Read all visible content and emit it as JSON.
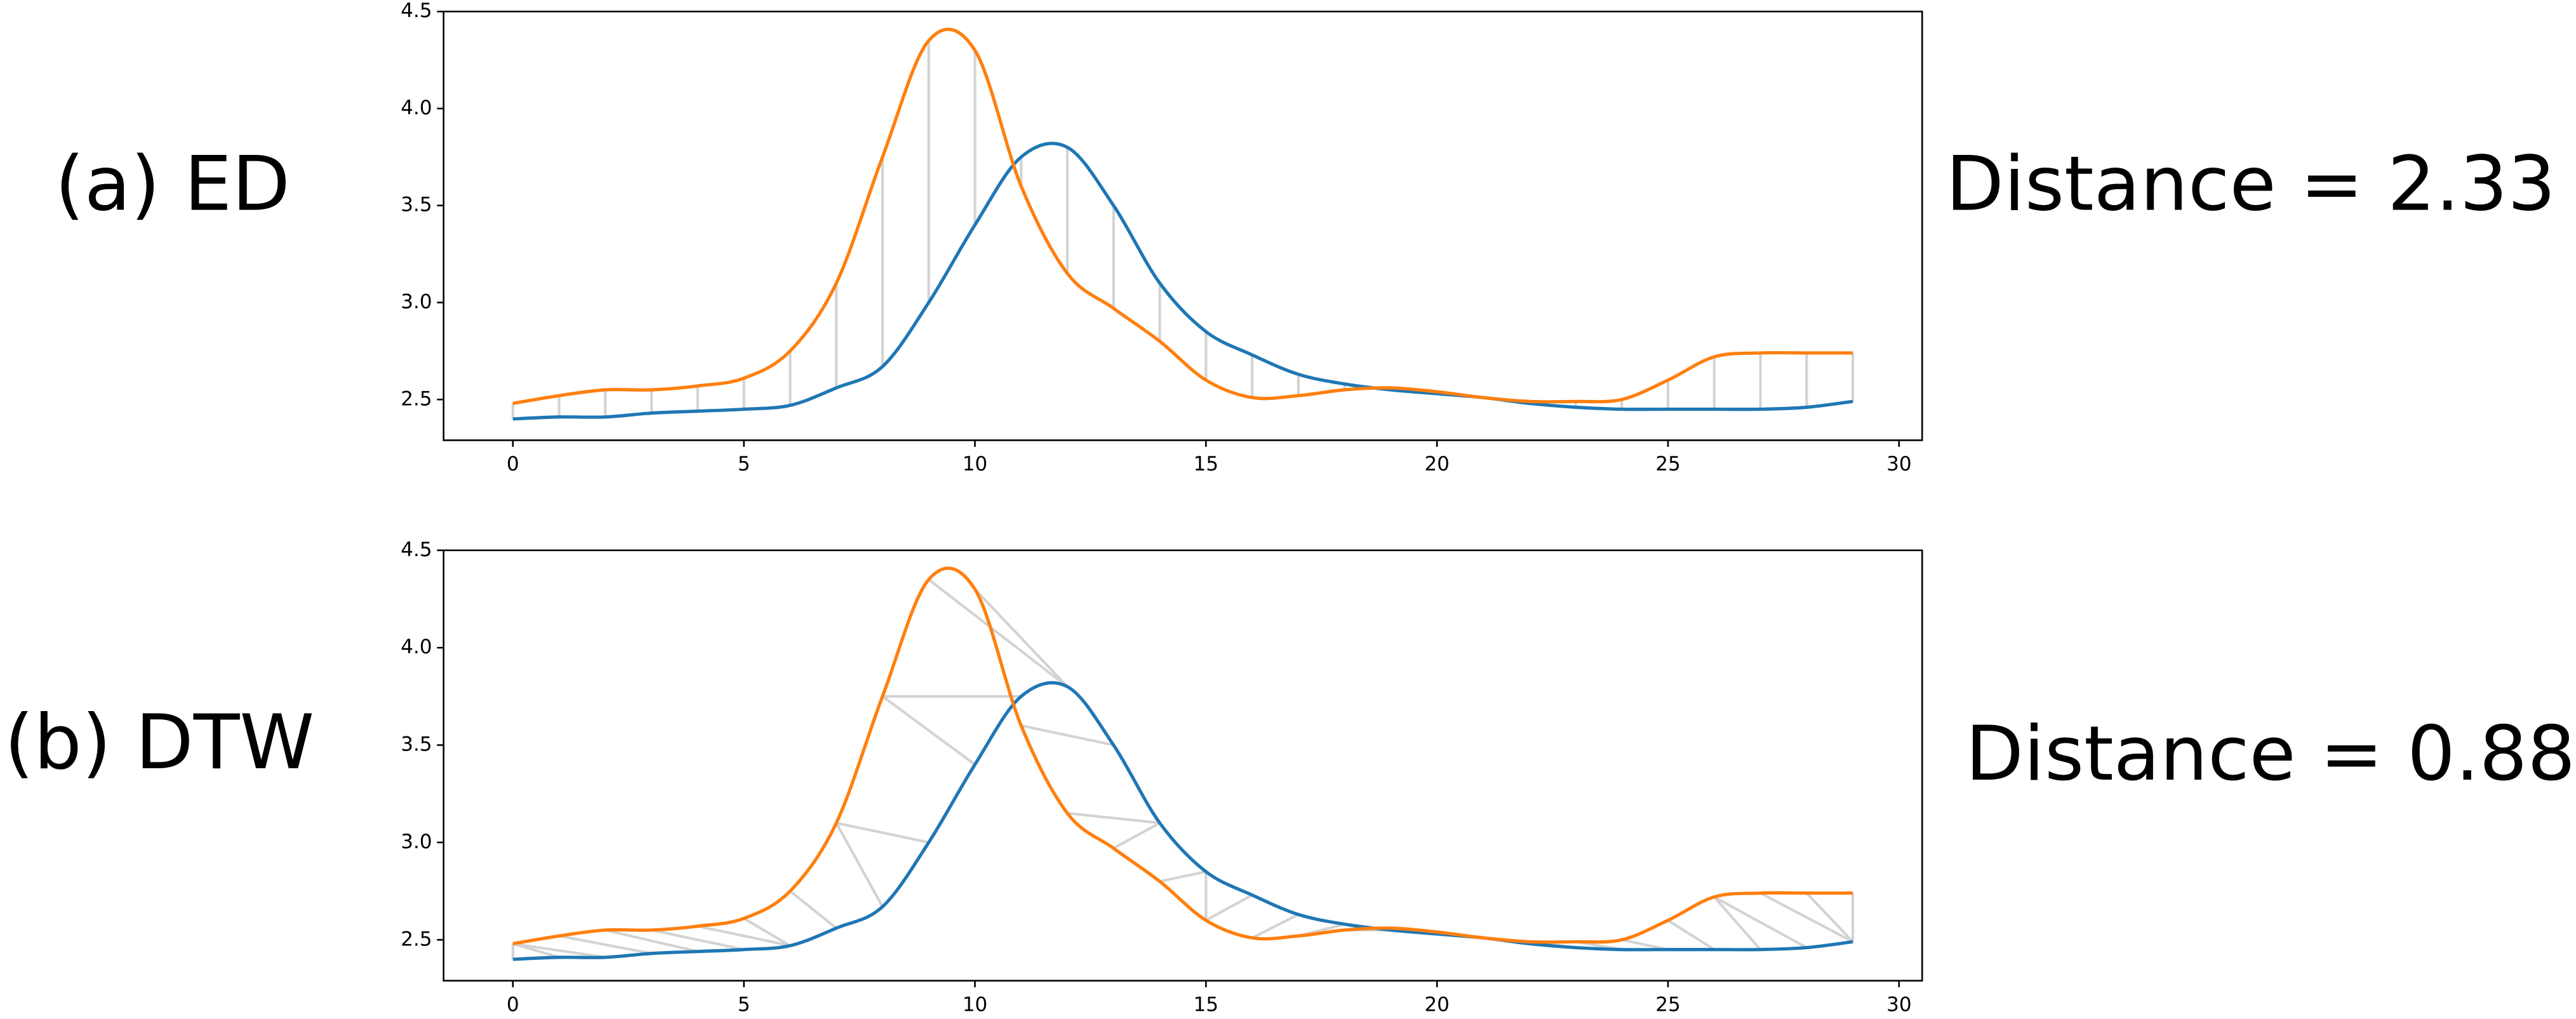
{
  "chart_data": [
    {
      "type": "line",
      "label": "(a) ED",
      "annotation": "Distance = 2.33",
      "x": [
        0,
        1,
        2,
        3,
        4,
        5,
        6,
        7,
        8,
        9,
        10,
        11,
        12,
        13,
        14,
        15,
        16,
        17,
        18,
        19,
        20,
        21,
        22,
        23,
        24,
        25,
        26,
        27,
        28,
        29
      ],
      "series": [
        {
          "color": "#1f77b4",
          "values": [
            2.4,
            2.41,
            2.41,
            2.43,
            2.44,
            2.45,
            2.47,
            2.56,
            2.67,
            3.0,
            3.4,
            3.75,
            3.8,
            3.5,
            3.1,
            2.85,
            2.73,
            2.63,
            2.58,
            2.55,
            2.53,
            2.51,
            2.48,
            2.46,
            2.45,
            2.45,
            2.45,
            2.45,
            2.46,
            2.49
          ]
        },
        {
          "color": "#ff7f0e",
          "values": [
            2.48,
            2.52,
            2.55,
            2.55,
            2.57,
            2.61,
            2.75,
            3.1,
            3.75,
            4.35,
            4.3,
            3.6,
            3.15,
            2.97,
            2.8,
            2.6,
            2.51,
            2.52,
            2.55,
            2.56,
            2.54,
            2.51,
            2.49,
            2.49,
            2.5,
            2.6,
            2.72,
            2.74,
            2.74,
            2.74
          ]
        }
      ],
      "xlim": [
        -1.5,
        30.5
      ],
      "xticks": [
        0,
        5,
        10,
        15,
        20,
        25,
        30
      ],
      "ylim": [
        2.29,
        4.5
      ],
      "yticks": [
        2.5,
        {
          "value": 3.0,
          "label": "3.0"
        },
        3.5,
        {
          "value": 4.0,
          "label": "4.0"
        },
        4.5
      ]
    },
    {
      "type": "line",
      "label": "(b) DTW",
      "annotation": "Distance = 0.88",
      "x": [
        0,
        1,
        2,
        3,
        4,
        5,
        6,
        7,
        8,
        9,
        10,
        11,
        12,
        13,
        14,
        15,
        16,
        17,
        18,
        19,
        20,
        21,
        22,
        23,
        24,
        25,
        26,
        27,
        28,
        29
      ],
      "series": [
        {
          "color": "#1f77b4",
          "values": [
            2.4,
            2.41,
            2.41,
            2.43,
            2.44,
            2.45,
            2.47,
            2.56,
            2.67,
            3.0,
            3.4,
            3.75,
            3.8,
            3.5,
            3.1,
            2.85,
            2.73,
            2.63,
            2.58,
            2.55,
            2.53,
            2.51,
            2.48,
            2.46,
            2.45,
            2.45,
            2.45,
            2.45,
            2.46,
            2.49
          ]
        },
        {
          "color": "#ff7f0e",
          "values": [
            2.48,
            2.52,
            2.55,
            2.55,
            2.57,
            2.61,
            2.75,
            3.1,
            3.75,
            4.35,
            4.3,
            3.6,
            3.15,
            2.97,
            2.8,
            2.6,
            2.51,
            2.52,
            2.55,
            2.56,
            2.54,
            2.51,
            2.49,
            2.49,
            2.5,
            2.6,
            2.72,
            2.74,
            2.74,
            2.74
          ]
        }
      ],
      "alignment": [
        [
          0,
          0
        ],
        [
          0,
          1
        ],
        [
          0,
          2
        ],
        [
          1,
          3
        ],
        [
          2,
          4
        ],
        [
          3,
          5
        ],
        [
          4,
          6
        ],
        [
          5,
          6
        ],
        [
          6,
          7
        ],
        [
          7,
          8
        ],
        [
          7,
          9
        ],
        [
          8,
          10
        ],
        [
          8,
          11
        ],
        [
          9,
          12
        ],
        [
          10,
          12
        ],
        [
          11,
          13
        ],
        [
          12,
          14
        ],
        [
          13,
          14
        ],
        [
          14,
          15
        ],
        [
          15,
          15
        ],
        [
          15,
          16
        ],
        [
          16,
          17
        ],
        [
          17,
          18
        ],
        [
          18,
          19
        ],
        [
          19,
          20
        ],
        [
          20,
          21
        ],
        [
          21,
          22
        ],
        [
          22,
          23
        ],
        [
          23,
          24
        ],
        [
          24,
          25
        ],
        [
          25,
          26
        ],
        [
          26,
          27
        ],
        [
          26,
          28
        ],
        [
          27,
          29
        ],
        [
          28,
          29
        ],
        [
          29,
          29
        ]
      ],
      "xlim": [
        -1.5,
        30.5
      ],
      "xticks": [
        0,
        5,
        10,
        15,
        20,
        25,
        30
      ],
      "ylim": [
        2.29,
        4.5
      ],
      "yticks": [
        2.5,
        {
          "value": 3.0,
          "label": "3.0"
        },
        3.5,
        {
          "value": 4.0,
          "label": "4.0"
        },
        4.5
      ]
    }
  ]
}
